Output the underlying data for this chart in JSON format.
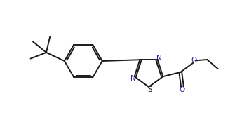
{
  "bg_color": "#ffffff",
  "line_color": "#1a1a1a",
  "heteroatom_color": "#2222aa",
  "line_width": 1.4,
  "figsize": [
    3.55,
    1.74
  ],
  "dpi": 100,
  "xlim": [
    0.0,
    10.0
  ],
  "ylim": [
    0.5,
    5.5
  ]
}
